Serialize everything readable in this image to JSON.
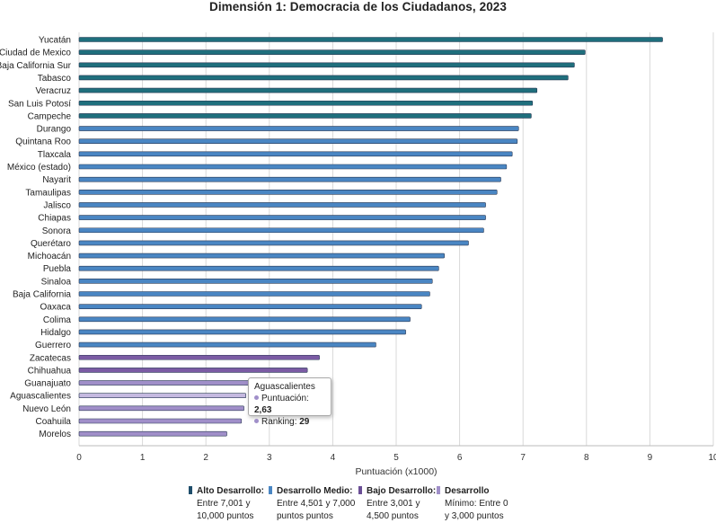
{
  "chart_data": {
    "type": "bar",
    "orientation": "horizontal",
    "title": "Dimensión 1: Democracia de los Ciudadanos, 2023",
    "xlabel": "Puntuación (x1000)",
    "ylabel": "",
    "xlim": [
      0,
      10
    ],
    "xticks": [
      "0",
      "1",
      "2",
      "3",
      "4",
      "5",
      "6",
      "7",
      "8",
      "9",
      "10"
    ],
    "grid": true,
    "legend_position": "bottom",
    "categories": [
      "Yucatán",
      "Ciudad de Mexico",
      "Baja California Sur",
      "Tabasco",
      "Veracruz",
      "San Luis Potosí",
      "Campeche",
      "Durango",
      "Quintana Roo",
      "Tlaxcala",
      "México (estado)",
      "Nayarit",
      "Tamaulipas",
      "Jalisco",
      "Chiapas",
      "Sonora",
      "Querétaro",
      "Michoacán",
      "Puebla",
      "Sinaloa",
      "Baja California",
      "Oaxaca",
      "Colima",
      "Hidalgo",
      "Guerrero",
      "Zacatecas",
      "Chihuahua",
      "Guanajuato",
      "Aguascalientes",
      "Nuevo León",
      "Coahuila",
      "Morelos"
    ],
    "values": [
      9.2,
      7.98,
      7.81,
      7.71,
      7.22,
      7.15,
      7.13,
      6.93,
      6.91,
      6.83,
      6.74,
      6.65,
      6.59,
      6.41,
      6.41,
      6.38,
      6.14,
      5.76,
      5.67,
      5.57,
      5.53,
      5.4,
      5.22,
      5.15,
      4.68,
      3.79,
      3.6,
      2.75,
      2.63,
      2.6,
      2.56,
      2.33
    ],
    "levels": [
      "alto",
      "alto",
      "alto",
      "alto",
      "alto",
      "alto",
      "alto",
      "medio",
      "medio",
      "medio",
      "medio",
      "medio",
      "medio",
      "medio",
      "medio",
      "medio",
      "medio",
      "medio",
      "medio",
      "medio",
      "medio",
      "medio",
      "medio",
      "medio",
      "medio",
      "bajo",
      "bajo",
      "minimo",
      "minimo_hover",
      "minimo",
      "minimo",
      "minimo"
    ],
    "colors": {
      "alto": "#1f6f7d",
      "medio": "#4a86c3",
      "bajo": "#7b5ba4",
      "minimo": "#a08fc9",
      "minimo_hover": "#c5b9e0"
    },
    "legend": [
      {
        "name": "Alto Desarrollo:",
        "lines": [
          "Entre 7,001 y",
          "10,000 puntos"
        ],
        "color": "#1f4e6b"
      },
      {
        "name": "Desarrollo Medio:",
        "lines": [
          "Entre 4,501 y 7,000",
          "puntos puntos"
        ],
        "color": "#4a86c3"
      },
      {
        "name": "Bajo Desarrollo:",
        "lines": [
          "Entre 3,001 y",
          "4,500 puntos"
        ],
        "color": "#6b4f96"
      },
      {
        "name": "Desarrollo",
        "lines": [
          "Mínimo: Entre 0",
          "y 3,000 puntos"
        ],
        "color": "#a08fc9"
      }
    ],
    "tooltip": {
      "title": "Aguascalientes",
      "score_label": "Puntuación:",
      "score_value": "2,63",
      "rank_label": "Ranking:",
      "rank_value": "29"
    }
  }
}
